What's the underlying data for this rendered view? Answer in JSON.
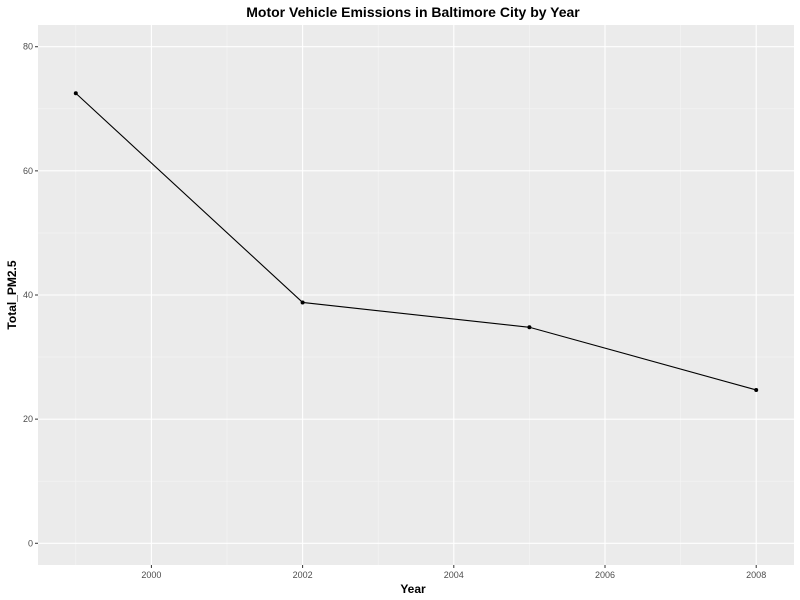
{
  "chart_data": {
    "type": "line",
    "title": "Motor Vehicle Emissions in Baltimore City by Year",
    "xlabel": "Year",
    "ylabel": "Total_PM2.5",
    "x": [
      1999,
      2002,
      2005,
      2008
    ],
    "series": [
      {
        "values": [
          72.5,
          38.8,
          34.8,
          24.7
        ]
      }
    ],
    "xlim": [
      1998.5,
      2008.5
    ],
    "ylim": [
      -3.5,
      83.5
    ],
    "x_ticks": [
      "2000",
      "2002",
      "2004",
      "2006",
      "2008"
    ],
    "y_ticks": [
      "0",
      "20",
      "40",
      "60",
      "80"
    ],
    "grid": true,
    "legend": "none",
    "colors": {
      "panel_background": "#ebebeb",
      "grid_major": "#ffffff",
      "grid_minor": "#f5f5f5",
      "line": "#000000",
      "point": "#000000"
    }
  }
}
